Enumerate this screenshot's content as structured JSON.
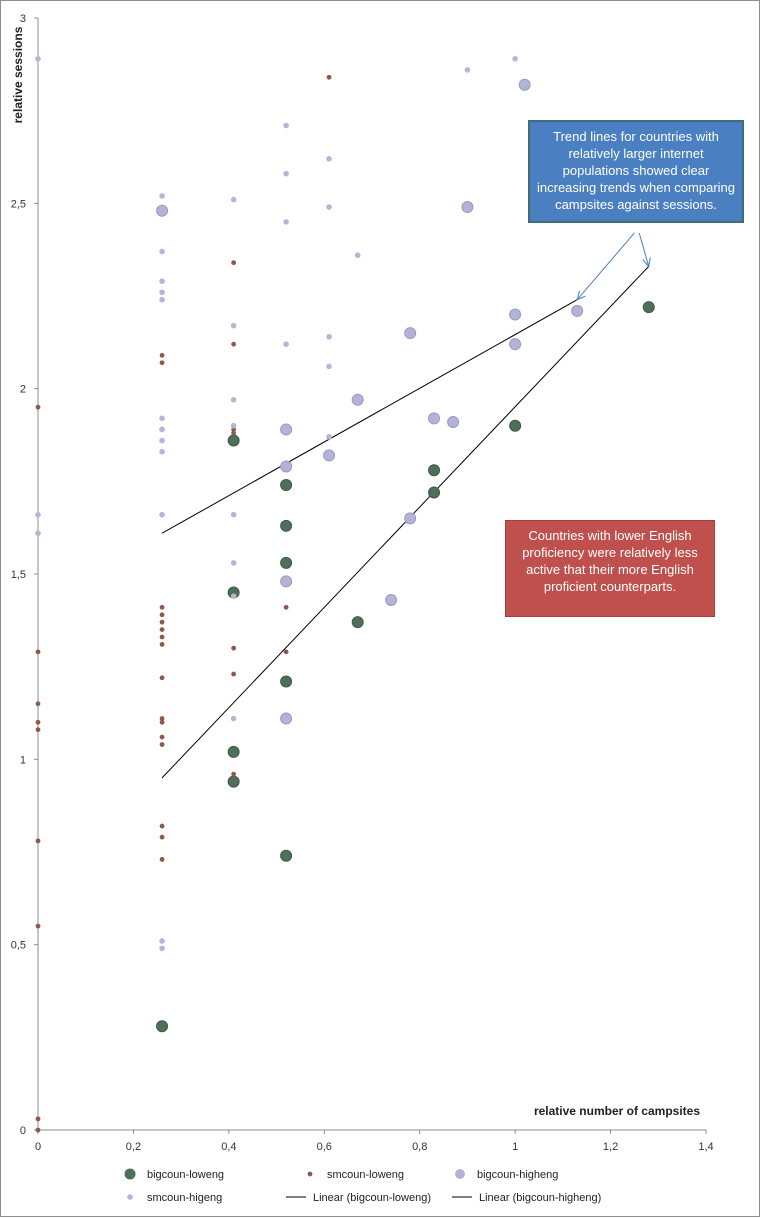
{
  "chart_data": {
    "type": "scatter",
    "title": "",
    "xlabel": "relative number of campsites",
    "ylabel": "relative sessions",
    "xlim": [
      0,
      1.4
    ],
    "ylim": [
      0,
      3
    ],
    "x_ticks": [
      "0",
      "0,2",
      "0,4",
      "0,6",
      "0,8",
      "1",
      "1,2",
      "1,4"
    ],
    "y_ticks": [
      "0",
      "0,5",
      "1",
      "1,5",
      "2",
      "2,5",
      "3"
    ],
    "grid": false,
    "legend_position": "bottom",
    "series": [
      {
        "name": "bigcoun-loweng",
        "color": "#4f6f5a",
        "marker": "large-circle",
        "points": [
          [
            0.26,
            0.28
          ],
          [
            0.41,
            1.86
          ],
          [
            0.41,
            1.45
          ],
          [
            0.41,
            1.02
          ],
          [
            0.41,
            0.94
          ],
          [
            0.52,
            1.74
          ],
          [
            0.52,
            1.63
          ],
          [
            0.52,
            1.53
          ],
          [
            0.52,
            1.21
          ],
          [
            0.52,
            0.74
          ],
          [
            0.67,
            1.37
          ],
          [
            0.83,
            1.78
          ],
          [
            0.83,
            1.72
          ],
          [
            1.0,
            1.9
          ],
          [
            1.28,
            2.22
          ]
        ]
      },
      {
        "name": "smcoun-loweng",
        "color": "#8b5a4a",
        "marker": "small-circle",
        "points": [
          [
            0,
            0.03
          ],
          [
            0,
            0.0
          ],
          [
            0,
            0.55
          ],
          [
            0,
            0.78
          ],
          [
            0,
            1.08
          ],
          [
            0,
            1.1
          ],
          [
            0,
            1.15
          ],
          [
            0,
            1.29
          ],
          [
            0,
            1.95
          ],
          [
            0.26,
            2.09
          ],
          [
            0.26,
            2.07
          ],
          [
            0.26,
            1.41
          ],
          [
            0.26,
            1.39
          ],
          [
            0.26,
            1.37
          ],
          [
            0.26,
            1.35
          ],
          [
            0.26,
            1.33
          ],
          [
            0.26,
            1.31
          ],
          [
            0.26,
            1.22
          ],
          [
            0.26,
            1.11
          ],
          [
            0.26,
            1.1
          ],
          [
            0.26,
            1.06
          ],
          [
            0.26,
            1.04
          ],
          [
            0.26,
            0.82
          ],
          [
            0.26,
            0.79
          ],
          [
            0.26,
            0.73
          ],
          [
            0.41,
            2.34
          ],
          [
            0.41,
            2.12
          ],
          [
            0.41,
            1.89
          ],
          [
            0.41,
            1.88
          ],
          [
            0.41,
            1.3
          ],
          [
            0.41,
            1.23
          ],
          [
            0.41,
            0.96
          ],
          [
            0.52,
            1.41
          ],
          [
            0.52,
            1.29
          ],
          [
            0.61,
            2.84
          ]
        ]
      },
      {
        "name": "bigcoun-higheng",
        "color": "#b3b3d6",
        "marker": "large-circle",
        "points": [
          [
            0.26,
            2.48
          ],
          [
            0.52,
            1.89
          ],
          [
            0.52,
            1.79
          ],
          [
            0.52,
            1.48
          ],
          [
            0.52,
            1.11
          ],
          [
            0.61,
            1.82
          ],
          [
            0.67,
            1.97
          ],
          [
            0.74,
            1.43
          ],
          [
            0.78,
            2.15
          ],
          [
            0.78,
            1.65
          ],
          [
            0.83,
            1.92
          ],
          [
            0.87,
            1.91
          ],
          [
            0.9,
            2.49
          ],
          [
            1.0,
            2.2
          ],
          [
            1.0,
            2.12
          ],
          [
            1.02,
            2.82
          ],
          [
            1.13,
            2.21
          ]
        ]
      },
      {
        "name": "smcoun-higeng",
        "color": "#b3b6d6",
        "marker": "small-circle",
        "points": [
          [
            0,
            2.89
          ],
          [
            0,
            1.66
          ],
          [
            0,
            1.61
          ],
          [
            0.26,
            2.52
          ],
          [
            0.26,
            2.37
          ],
          [
            0.26,
            2.29
          ],
          [
            0.26,
            2.26
          ],
          [
            0.26,
            2.24
          ],
          [
            0.26,
            1.92
          ],
          [
            0.26,
            1.89
          ],
          [
            0.26,
            1.89
          ],
          [
            0.26,
            1.86
          ],
          [
            0.26,
            1.83
          ],
          [
            0.26,
            1.66
          ],
          [
            0.26,
            0.51
          ],
          [
            0.26,
            0.49
          ],
          [
            0.41,
            2.51
          ],
          [
            0.41,
            2.17
          ],
          [
            0.41,
            1.97
          ],
          [
            0.41,
            1.9
          ],
          [
            0.41,
            1.66
          ],
          [
            0.41,
            1.53
          ],
          [
            0.41,
            1.44
          ],
          [
            0.41,
            1.11
          ],
          [
            0.52,
            2.71
          ],
          [
            0.52,
            2.58
          ],
          [
            0.52,
            2.45
          ],
          [
            0.52,
            2.12
          ],
          [
            0.61,
            2.62
          ],
          [
            0.61,
            2.49
          ],
          [
            0.61,
            2.14
          ],
          [
            0.61,
            2.06
          ],
          [
            0.61,
            1.87
          ],
          [
            0.67,
            2.36
          ],
          [
            0.9,
            2.86
          ],
          [
            1.0,
            2.89
          ]
        ]
      }
    ],
    "trendlines": [
      {
        "name": "Linear (bigcoun-loweng)",
        "color": "#000000",
        "x": [
          0.26,
          1.28
        ],
        "y": [
          0.95,
          2.33
        ]
      },
      {
        "name": "Linear (bigcoun-higheng)",
        "color": "#000000",
        "x": [
          0.26,
          1.13
        ],
        "y": [
          1.61,
          2.24
        ]
      }
    ],
    "arrows": [
      {
        "from": [
          1.25,
          2.42
        ],
        "to": [
          1.13,
          2.24
        ]
      },
      {
        "from": [
          1.26,
          2.42
        ],
        "to": [
          1.28,
          2.33
        ]
      }
    ],
    "annotations": [
      {
        "id": "blue",
        "text": "Trend lines for countries with relatively larger internet populations showed clear increasing trends when comparing campsites against sessions.",
        "color": "#4a7fc1"
      },
      {
        "id": "red",
        "text": "Countries with lower English proficiency were relatively less active that their more English proficient  counterparts.",
        "color": "#c0504d"
      }
    ],
    "legend": [
      "bigcoun-loweng",
      "smcoun-loweng",
      "bigcoun-higheng",
      "smcoun-higeng",
      "Linear (bigcoun-loweng)",
      "Linear (bigcoun-higheng)"
    ]
  }
}
